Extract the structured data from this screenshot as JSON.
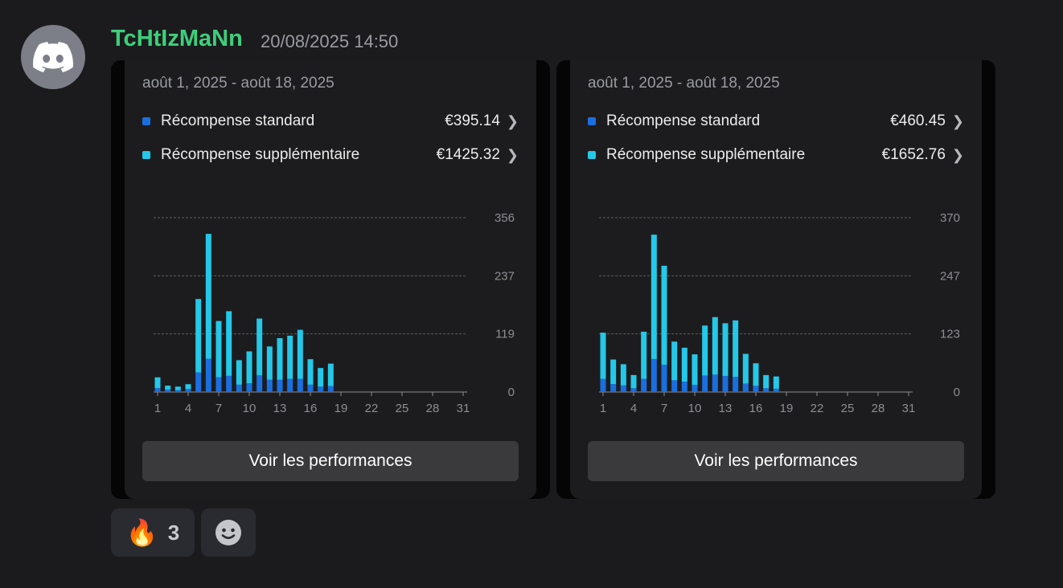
{
  "message": {
    "username": "TcHtIzMaNn",
    "timestamp": "20/08/2025 14:50"
  },
  "cards": [
    {
      "date_range": "août 1, 2025 - août 18, 2025",
      "legend": [
        {
          "label": "Récompense standard",
          "value": "€395.14",
          "color": "#1a6fe0"
        },
        {
          "label": "Récompense supplémentaire",
          "value": "€1425.32",
          "color": "#24c8e8"
        }
      ],
      "button_label": "Voir les performances",
      "chart_data": {
        "type": "bar",
        "stacked": true,
        "x_ticks": [
          "1",
          "4",
          "7",
          "10",
          "13",
          "16",
          "19",
          "22",
          "25",
          "28",
          "31"
        ],
        "y_ticks": [
          "356",
          "237",
          "119",
          "0"
        ],
        "ylim": [
          0,
          356
        ],
        "categories": [
          1,
          2,
          3,
          4,
          5,
          6,
          7,
          8,
          9,
          10,
          11,
          12,
          13,
          14,
          15,
          16,
          17,
          18
        ],
        "series": [
          {
            "values": [
              8,
              5,
              4,
              6,
              40,
              68,
              30,
              33,
              15,
              18,
              34,
              25,
              25,
              27,
              27,
              15,
              11,
              12
            ],
            "color": "#1a6fe0"
          },
          {
            "values": [
              22,
              8,
              7,
              10,
              150,
              255,
              115,
              132,
              50,
              65,
              116,
              68,
              85,
              88,
              100,
              52,
              38,
              46
            ],
            "color": "#24c8e8"
          }
        ],
        "grid": "dashed"
      }
    },
    {
      "date_range": "août 1, 2025 - août 18, 2025",
      "legend": [
        {
          "label": "Récompense standard",
          "value": "€460.45",
          "color": "#1a6fe0"
        },
        {
          "label": "Récompense supplémentaire",
          "value": "€1652.76",
          "color": "#24c8e8"
        }
      ],
      "button_label": "Voir les performances",
      "chart_data": {
        "type": "bar",
        "stacked": true,
        "x_ticks": [
          "1",
          "4",
          "7",
          "10",
          "13",
          "16",
          "19",
          "22",
          "25",
          "28",
          "31"
        ],
        "y_ticks": [
          "370",
          "247",
          "123",
          "0"
        ],
        "ylim": [
          0,
          370
        ],
        "categories": [
          1,
          2,
          3,
          4,
          5,
          6,
          7,
          8,
          9,
          10,
          11,
          12,
          13,
          14,
          15,
          16,
          17,
          18
        ],
        "series": [
          {
            "values": [
              28,
              17,
              14,
              8,
              28,
              70,
              58,
              25,
              22,
              15,
              35,
              37,
              34,
              32,
              18,
              13,
              8,
              7
            ],
            "color": "#1a6fe0"
          },
          {
            "values": [
              98,
              52,
              45,
              28,
              100,
              264,
              210,
              82,
              72,
              65,
              106,
              122,
              112,
              120,
              63,
              48,
              28,
              26
            ],
            "color": "#24c8e8"
          }
        ],
        "grid": "dashed"
      }
    }
  ],
  "reactions": {
    "fire": {
      "emoji": "🔥",
      "count": "3"
    },
    "add_icon": "smiley-icon"
  }
}
